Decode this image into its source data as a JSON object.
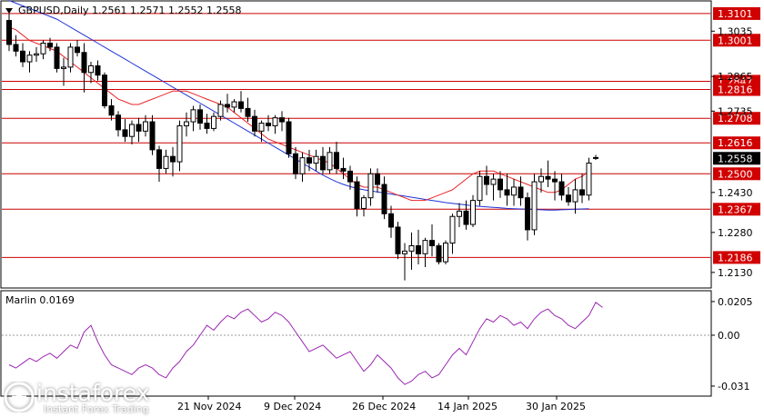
{
  "chart_data": [
    {
      "type": "candlestick",
      "title": "GBPUSD,Daily  1.2561 1.2571 1.2552 1.2558",
      "ylim": [
        1.2075,
        1.3145
      ],
      "y_ticks": [
        "1.3035",
        "1.2865",
        "1.2735",
        "1.2430",
        "1.2280",
        "1.2130"
      ],
      "x_ticks": [
        "21 Nov 2024",
        "9 Dec 2024",
        "26 Dec 2024",
        "14 Jan 2025",
        "30 Jan 2025"
      ],
      "current_price": "1.2558",
      "levels": [
        {
          "label": "1.3101",
          "value": 1.3101
        },
        {
          "label": "1.3001",
          "value": 1.3001
        },
        {
          "label": "1.2847",
          "value": 1.2847
        },
        {
          "label": "1.2816",
          "value": 1.2816
        },
        {
          "label": "1.2708",
          "value": 1.2708
        },
        {
          "label": "1.2616",
          "value": 1.2616
        },
        {
          "label": "1.2500",
          "value": 1.25
        },
        {
          "label": "1.2367",
          "value": 1.2367
        },
        {
          "label": "1.2186",
          "value": 1.2186
        }
      ],
      "candles": [
        [
          1.3075,
          1.3101,
          1.296,
          1.2985
        ],
        [
          1.2985,
          1.302,
          1.294,
          1.296
        ],
        [
          1.296,
          1.299,
          1.29,
          1.292
        ],
        [
          1.292,
          1.296,
          1.288,
          1.2945
        ],
        [
          1.2945,
          1.2975,
          1.292,
          1.295
        ],
        [
          1.295,
          1.3,
          1.293,
          1.299
        ],
        [
          1.299,
          1.301,
          1.296,
          1.2975
        ],
        [
          1.2975,
          1.299,
          1.288,
          1.2895
        ],
        [
          1.2895,
          1.2935,
          1.283,
          1.29
        ],
        [
          1.29,
          1.299,
          1.288,
          1.2975
        ],
        [
          1.2975,
          1.3001,
          1.294,
          1.2955
        ],
        [
          1.2955,
          1.299,
          1.2805,
          1.288
        ],
        [
          1.288,
          1.292,
          1.284,
          1.2905
        ],
        [
          1.2905,
          1.2925,
          1.285,
          1.287
        ],
        [
          1.287,
          1.288,
          1.2745,
          1.2755
        ],
        [
          1.2755,
          1.278,
          1.27,
          1.272
        ],
        [
          1.272,
          1.2735,
          1.264,
          1.2665
        ],
        [
          1.2665,
          1.2705,
          1.262,
          1.264
        ],
        [
          1.264,
          1.27,
          1.261,
          1.2685
        ],
        [
          1.2685,
          1.271,
          1.262,
          1.266
        ],
        [
          1.266,
          1.272,
          1.264,
          1.2695
        ],
        [
          1.2695,
          1.272,
          1.257,
          1.259
        ],
        [
          1.259,
          1.2605,
          1.247,
          1.252
        ],
        [
          1.252,
          1.259,
          1.25,
          1.2565
        ],
        [
          1.2565,
          1.26,
          1.249,
          1.2545
        ],
        [
          1.2545,
          1.27,
          1.251,
          1.268
        ],
        [
          1.268,
          1.273,
          1.264,
          1.2695
        ],
        [
          1.2695,
          1.2755,
          1.266,
          1.274
        ],
        [
          1.274,
          1.276,
          1.2665,
          1.269
        ],
        [
          1.269,
          1.2725,
          1.265,
          1.267
        ],
        [
          1.267,
          1.273,
          1.266,
          1.2715
        ],
        [
          1.2715,
          1.2775,
          1.27,
          1.276
        ],
        [
          1.276,
          1.28,
          1.273,
          1.275
        ],
        [
          1.275,
          1.278,
          1.273,
          1.277
        ],
        [
          1.277,
          1.281,
          1.273,
          1.2745
        ],
        [
          1.2745,
          1.2785,
          1.2695,
          1.2715
        ],
        [
          1.2715,
          1.274,
          1.264,
          1.266
        ],
        [
          1.266,
          1.27,
          1.262,
          1.269
        ],
        [
          1.269,
          1.272,
          1.266,
          1.268
        ],
        [
          1.268,
          1.272,
          1.265,
          1.271
        ],
        [
          1.271,
          1.2735,
          1.266,
          1.2695
        ],
        [
          1.2695,
          1.271,
          1.256,
          1.2575
        ],
        [
          1.2575,
          1.26,
          1.248,
          1.25
        ],
        [
          1.25,
          1.258,
          1.247,
          1.256
        ],
        [
          1.256,
          1.259,
          1.251,
          1.254
        ],
        [
          1.254,
          1.259,
          1.251,
          1.2565
        ],
        [
          1.2565,
          1.26,
          1.25,
          1.2515
        ],
        [
          1.2515,
          1.26,
          1.25,
          1.258
        ],
        [
          1.258,
          1.262,
          1.25,
          1.252
        ],
        [
          1.252,
          1.256,
          1.248,
          1.251
        ],
        [
          1.251,
          1.253,
          1.244,
          1.247
        ],
        [
          1.247,
          1.249,
          1.234,
          1.237
        ],
        [
          1.237,
          1.242,
          1.234,
          1.241
        ],
        [
          1.241,
          1.252,
          1.238,
          1.25
        ],
        [
          1.25,
          1.252,
          1.243,
          1.246
        ],
        [
          1.246,
          1.249,
          1.233,
          1.235
        ],
        [
          1.235,
          1.238,
          1.226,
          1.23
        ],
        [
          1.23,
          1.232,
          1.218,
          1.22
        ],
        [
          1.22,
          1.224,
          1.21,
          1.221
        ],
        [
          1.221,
          1.228,
          1.214,
          1.223
        ],
        [
          1.223,
          1.229,
          1.216,
          1.22
        ],
        [
          1.22,
          1.226,
          1.215,
          1.225
        ],
        [
          1.225,
          1.231,
          1.219,
          1.223
        ],
        [
          1.223,
          1.224,
          1.216,
          1.217
        ],
        [
          1.217,
          1.225,
          1.216,
          1.224
        ],
        [
          1.224,
          1.235,
          1.22,
          1.234
        ],
        [
          1.234,
          1.239,
          1.23,
          1.236
        ],
        [
          1.236,
          1.24,
          1.229,
          1.231
        ],
        [
          1.231,
          1.242,
          1.23,
          1.24
        ],
        [
          1.24,
          1.251,
          1.238,
          1.249
        ],
        [
          1.249,
          1.253,
          1.242,
          1.246
        ],
        [
          1.246,
          1.25,
          1.24,
          1.248
        ],
        [
          1.248,
          1.251,
          1.241,
          1.244
        ],
        [
          1.244,
          1.25,
          1.238,
          1.242
        ],
        [
          1.242,
          1.248,
          1.238,
          1.245
        ],
        [
          1.245,
          1.249,
          1.238,
          1.241
        ],
        [
          1.241,
          1.243,
          1.225,
          1.229
        ],
        [
          1.229,
          1.25,
          1.227,
          1.247
        ],
        [
          1.247,
          1.252,
          1.243,
          1.249
        ],
        [
          1.249,
          1.255,
          1.245,
          1.248
        ],
        [
          1.248,
          1.251,
          1.24,
          1.247
        ],
        [
          1.247,
          1.25,
          1.24,
          1.242
        ],
        [
          1.242,
          1.245,
          1.238,
          1.2395
        ],
        [
          1.2395,
          1.248,
          1.235,
          1.244
        ],
        [
          1.244,
          1.25,
          1.239,
          1.242
        ],
        [
          1.242,
          1.256,
          1.24,
          1.254
        ],
        [
          1.2561,
          1.2571,
          1.2552,
          1.2558
        ]
      ],
      "ma_red": [
        1.305,
        1.304,
        1.302,
        1.3,
        1.299,
        1.298,
        1.297,
        1.296,
        1.294,
        1.292,
        1.29,
        1.288,
        1.286,
        1.284,
        1.282,
        1.28,
        1.278,
        1.277,
        1.276,
        1.276,
        1.277,
        1.278,
        1.279,
        1.28,
        1.281,
        1.281,
        1.281,
        1.28,
        1.279,
        1.278,
        1.277,
        1.276,
        1.275,
        1.273,
        1.271,
        1.269,
        1.267,
        1.265,
        1.263,
        1.262,
        1.261,
        1.26,
        1.259,
        1.258,
        1.257,
        1.256,
        1.255,
        1.254,
        1.252,
        1.25,
        1.248,
        1.246,
        1.245,
        1.245,
        1.245,
        1.244,
        1.243,
        1.242,
        1.241,
        1.24,
        1.24,
        1.24,
        1.241,
        1.242,
        1.243,
        1.244,
        1.246,
        1.248,
        1.25,
        1.251,
        1.251,
        1.251,
        1.25,
        1.249,
        1.248,
        1.247,
        1.246,
        1.245,
        1.244,
        1.243,
        1.243,
        1.244,
        1.246,
        1.248,
        1.249,
        1.251
      ],
      "ma_blue": [
        1.315,
        1.314,
        1.313,
        1.312,
        1.311,
        1.31,
        1.309,
        1.308,
        1.3065,
        1.305,
        1.3035,
        1.302,
        1.3005,
        1.299,
        1.2975,
        1.296,
        1.2945,
        1.293,
        1.2915,
        1.29,
        1.2885,
        1.287,
        1.2855,
        1.284,
        1.2825,
        1.281,
        1.2795,
        1.278,
        1.2765,
        1.275,
        1.2735,
        1.272,
        1.2705,
        1.269,
        1.2675,
        1.266,
        1.2645,
        1.263,
        1.2615,
        1.26,
        1.2585,
        1.257,
        1.2555,
        1.254,
        1.2525,
        1.251,
        1.2495,
        1.2482,
        1.247,
        1.246,
        1.2452,
        1.2445,
        1.244,
        1.2436,
        1.2432,
        1.2428,
        1.2424,
        1.242,
        1.2416,
        1.2412,
        1.2408,
        1.2404,
        1.24,
        1.2396,
        1.2392,
        1.2389,
        1.2386,
        1.2383,
        1.238,
        1.2378,
        1.2376,
        1.2374,
        1.2372,
        1.237,
        1.2369,
        1.2368,
        1.2367,
        1.2366,
        1.2365,
        1.2364,
        1.2364,
        1.2365,
        1.2366,
        1.2367,
        1.2368,
        1.2369
      ]
    },
    {
      "type": "line",
      "title": "Marlin 0.0169",
      "ylim": [
        -0.036,
        0.026
      ],
      "y_ticks": [
        "0.0205",
        "0.00",
        "-0.031"
      ],
      "zero_line": 0,
      "values": [
        -0.018,
        -0.02,
        -0.017,
        -0.014,
        -0.016,
        -0.013,
        -0.011,
        -0.014,
        -0.01,
        -0.006,
        -0.008,
        0.002,
        0.006,
        -0.004,
        -0.012,
        -0.018,
        -0.02,
        -0.022,
        -0.024,
        -0.02,
        -0.018,
        -0.02,
        -0.024,
        -0.026,
        -0.02,
        -0.016,
        -0.01,
        -0.006,
        0.0,
        0.006,
        0.003,
        0.008,
        0.012,
        0.01,
        0.014,
        0.016,
        0.012,
        0.008,
        0.01,
        0.014,
        0.012,
        0.008,
        0.002,
        -0.004,
        -0.01,
        -0.008,
        -0.006,
        -0.01,
        -0.014,
        -0.012,
        -0.01,
        -0.016,
        -0.022,
        -0.018,
        -0.012,
        -0.016,
        -0.02,
        -0.026,
        -0.03,
        -0.028,
        -0.024,
        -0.022,
        -0.026,
        -0.024,
        -0.018,
        -0.012,
        -0.008,
        -0.012,
        -0.004,
        0.004,
        0.01,
        0.008,
        0.012,
        0.01,
        0.006,
        0.008,
        0.004,
        0.01,
        0.014,
        0.016,
        0.012,
        0.01,
        0.006,
        0.004,
        0.008,
        0.012,
        0.02,
        0.0169
      ]
    }
  ],
  "watermark": {
    "brand": "instaforex",
    "tagline": "Instant Forex Trading"
  },
  "colors": {
    "candle": "#000000",
    "ma_red": "#e8262a",
    "ma_blue": "#1f33d6",
    "marlin": "#9b27b0",
    "level": "#cc0000",
    "level_label": "#d10000",
    "price_label": "#000000"
  }
}
